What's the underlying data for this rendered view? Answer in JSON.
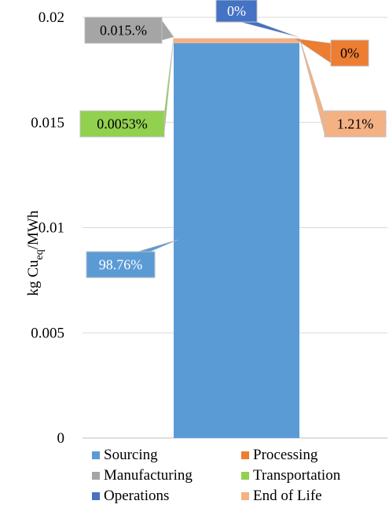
{
  "chart_data": {
    "type": "bar",
    "stacked": true,
    "title": "",
    "ylabel": {
      "main": "kg Cu",
      "subscript": "eq",
      "tail": "/MWh"
    },
    "ylim": [
      0,
      0.02
    ],
    "yticks": [
      "0",
      "0.005",
      "0.01",
      "0.015",
      "0.02"
    ],
    "grid": true,
    "legend_position": "bottom",
    "series": [
      {
        "name": "Sourcing",
        "value": 0.01877,
        "color": "#5b9bd5",
        "label": "98.76%",
        "label_text_color": "#ffffff"
      },
      {
        "name": "Processing",
        "value": 0.0,
        "color": "#ed7d31",
        "label": "0%",
        "label_text_color": "#000000"
      },
      {
        "name": "Manufacturing",
        "value": 2.9e-06,
        "color": "#a5a5a5",
        "label": "0.015.%",
        "label_text_color": "#000000"
      },
      {
        "name": "Transportation",
        "value": 1e-06,
        "color": "#92d050",
        "label": "0.0053%",
        "label_text_color": "#000000"
      },
      {
        "name": "Operations",
        "value": 0.0,
        "color": "#4472c4",
        "label": "0%",
        "label_text_color": "#ffffff"
      },
      {
        "name": "End of Life",
        "value": 0.00023,
        "color": "#f4b183",
        "label": "1.21%",
        "label_text_color": "#000000"
      }
    ]
  }
}
